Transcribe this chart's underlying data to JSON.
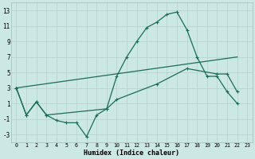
{
  "xlabel": "Humidex (Indice chaleur)",
  "bg_color": "#cce8e4",
  "grid_color": "#b8d4d0",
  "line_color": "#1a6b5a",
  "xlim": [
    -0.5,
    23.5
  ],
  "ylim": [
    -4,
    14
  ],
  "yticks": [
    -3,
    -1,
    1,
    3,
    5,
    7,
    9,
    11,
    13
  ],
  "xticks": [
    0,
    1,
    2,
    3,
    4,
    5,
    6,
    7,
    8,
    9,
    10,
    11,
    12,
    13,
    14,
    15,
    16,
    17,
    18,
    19,
    20,
    21,
    22,
    23
  ],
  "series1_x": [
    0,
    1,
    2,
    3,
    4,
    5,
    6,
    7,
    8,
    9,
    10,
    11,
    12,
    13,
    14,
    15,
    16,
    17,
    18,
    19,
    20,
    21,
    22
  ],
  "series1_y": [
    3.0,
    -0.5,
    1.2,
    -0.5,
    -1.2,
    -1.5,
    -1.5,
    -3.3,
    -0.5,
    0.3,
    4.5,
    7.0,
    9.0,
    10.8,
    11.5,
    12.5,
    12.8,
    10.5,
    7.0,
    4.5,
    4.5,
    2.5,
    1.0
  ],
  "series2_x": [
    0,
    22
  ],
  "series2_y": [
    3.0,
    7.0
  ],
  "series3_x": [
    0,
    1,
    2,
    3,
    9,
    10,
    14,
    17,
    20,
    21,
    22
  ],
  "series3_y": [
    3.0,
    -0.5,
    1.2,
    -0.5,
    0.3,
    1.5,
    3.5,
    5.5,
    4.8,
    4.8,
    2.5
  ]
}
